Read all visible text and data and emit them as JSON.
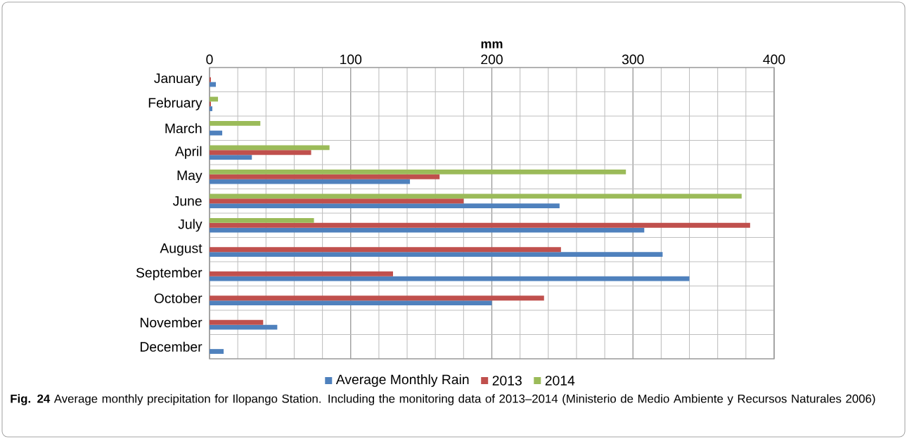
{
  "chart_data": {
    "type": "bar",
    "orientation": "horizontal",
    "xlabel": "mm",
    "categories": [
      "January",
      "February",
      "March",
      "April",
      "May",
      "June",
      "July",
      "August",
      "September",
      "October",
      "November",
      "December"
    ],
    "series": [
      {
        "name": "Average Monthly Rain",
        "color": "#4f81bd",
        "values": [
          4.5,
          2,
          9,
          30,
          142,
          248,
          308,
          321,
          340,
          200,
          48,
          10
        ]
      },
      {
        "name": "2013",
        "color": "#c0504d",
        "values": [
          1,
          1,
          0,
          72,
          163,
          180,
          383,
          249,
          130,
          237,
          38,
          0
        ]
      },
      {
        "name": "2014",
        "color": "#9bbb59",
        "values": [
          0,
          6,
          36,
          85,
          295,
          377,
          74,
          0,
          0,
          0,
          0,
          0
        ]
      }
    ],
    "xlim": [
      0,
      400
    ],
    "xticks": [
      0,
      100,
      200,
      300,
      400
    ],
    "grid": true,
    "legend": "bottom",
    "annotations": [
      "**Fig. 24** Average monthly precipitation for Ilopango Station. Including the monitoring data of 2013–2014 (Ministerio de Medio Ambiente y Recursos Naturales 2006)"
    ]
  }
}
